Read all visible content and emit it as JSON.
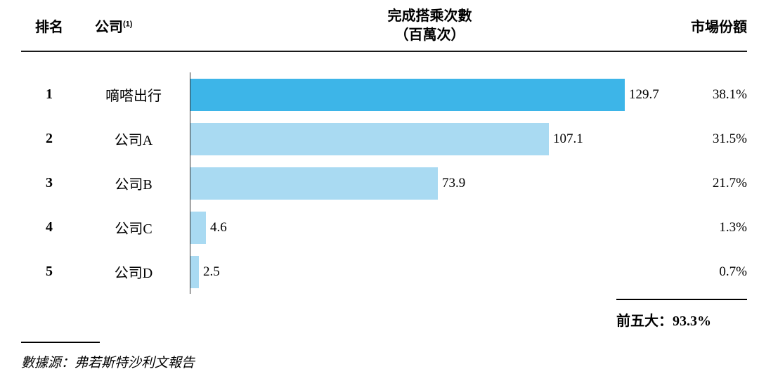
{
  "header": {
    "rank": "排名",
    "company": "公司",
    "company_footnote": "(1)",
    "rides_line1": "完成搭乘次數",
    "rides_line2": "（百萬次）",
    "share": "市場份額"
  },
  "rows": [
    {
      "rank": "1",
      "company": "嘀嗒出行",
      "value": 129.7,
      "value_label": "129.7",
      "share": "38.1%",
      "highlight": true
    },
    {
      "rank": "2",
      "company": "公司A",
      "value": 107.1,
      "value_label": "107.1",
      "share": "31.5%",
      "highlight": false
    },
    {
      "rank": "3",
      "company": "公司B",
      "value": 73.9,
      "value_label": "73.9",
      "share": "21.7%",
      "highlight": false
    },
    {
      "rank": "4",
      "company": "公司C",
      "value": 4.6,
      "value_label": "4.6",
      "share": "1.3%",
      "highlight": false
    },
    {
      "rank": "5",
      "company": "公司D",
      "value": 2.5,
      "value_label": "2.5",
      "share": "0.7%",
      "highlight": false
    }
  ],
  "total": {
    "label": "前五大：",
    "value": "93.3%"
  },
  "source": "數據源：弗若斯特沙利文報告",
  "colors": {
    "primary": "#3DB5E8",
    "light": "#A9DAF2"
  },
  "chart_data": {
    "type": "bar",
    "orientation": "horizontal",
    "title": "完成搭乘次數（百萬次）",
    "categories": [
      "嘀嗒出行",
      "公司A",
      "公司B",
      "公司C",
      "公司D"
    ],
    "ranks": [
      1,
      2,
      3,
      4,
      5
    ],
    "series": [
      {
        "name": "完成搭乘次數（百萬次）",
        "values": [
          129.7,
          107.1,
          73.9,
          4.6,
          2.5
        ]
      },
      {
        "name": "市場份額",
        "values": [
          "38.1%",
          "31.5%",
          "21.7%",
          "1.3%",
          "0.7%"
        ]
      }
    ],
    "xlim": [
      0,
      140
    ],
    "grid": false,
    "legend": false,
    "annotations": [
      "前五大：93.3%"
    ],
    "source": "數據源：弗若斯特沙利文報告",
    "bar_colors": {
      "嘀嗒出行": "#3DB5E8",
      "others": "#A9DAF2"
    }
  }
}
